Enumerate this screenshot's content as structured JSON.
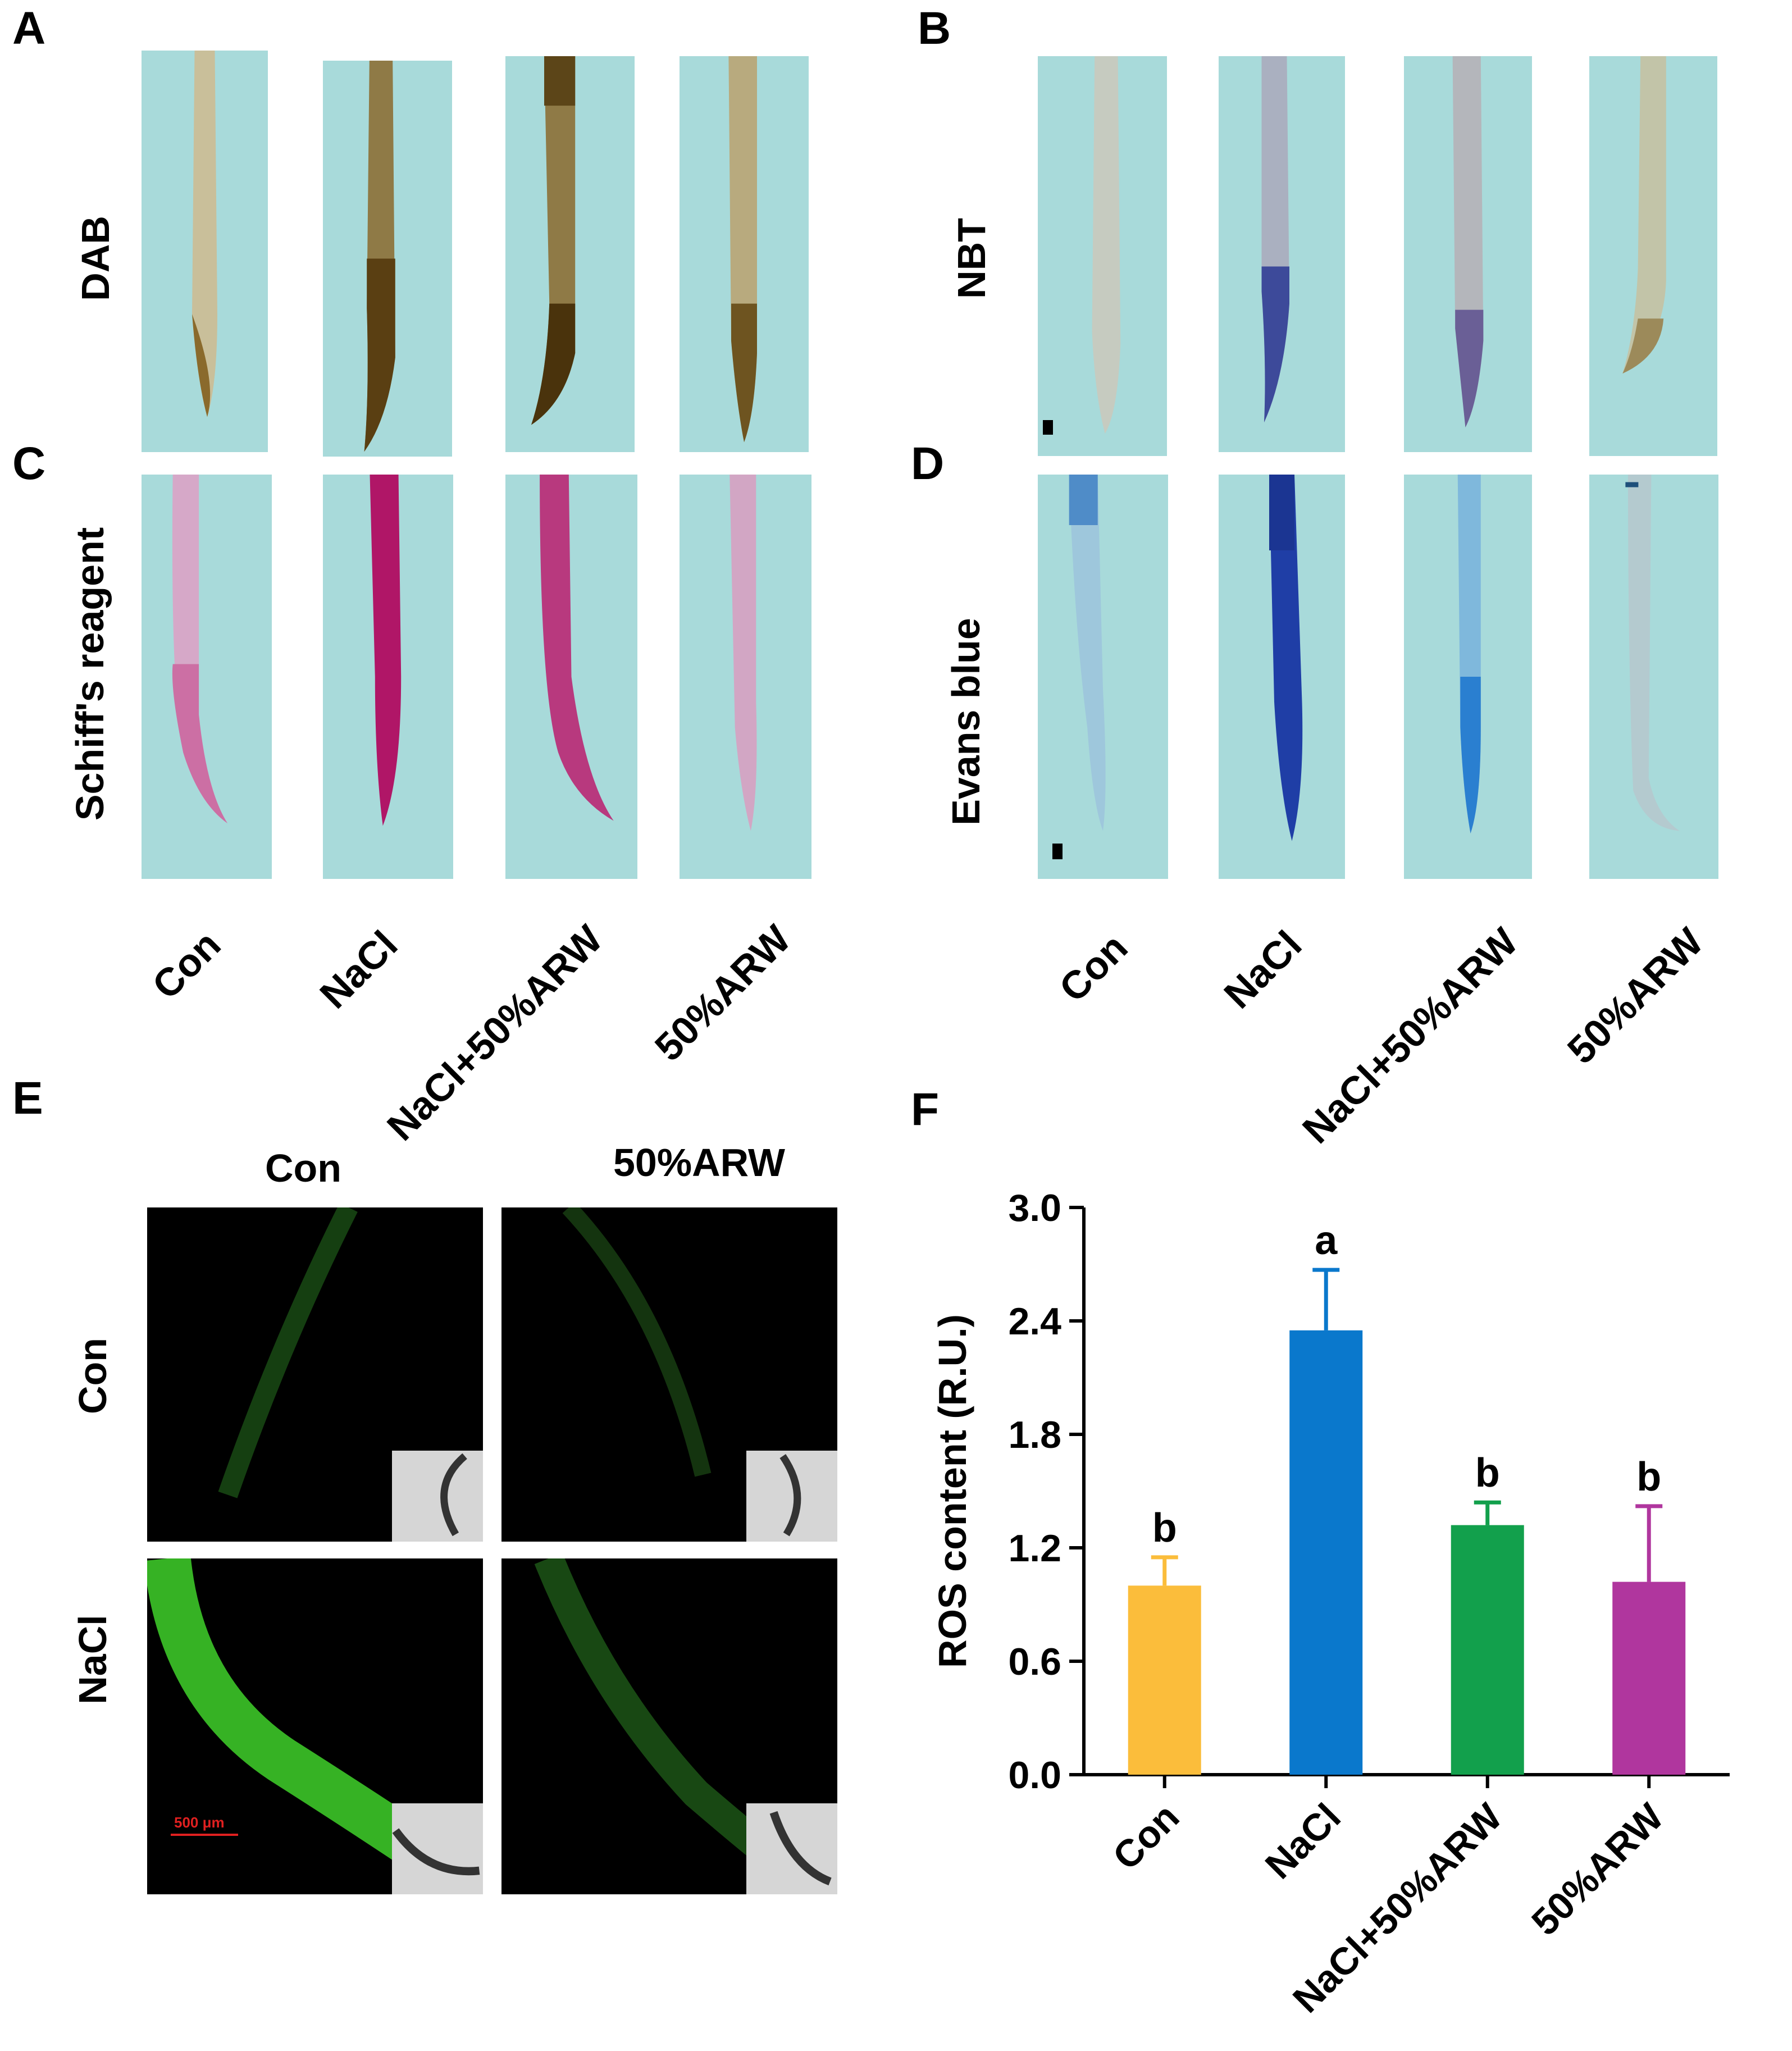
{
  "panels": {
    "A": {
      "letter": "A",
      "stain": "DAB"
    },
    "B": {
      "letter": "B",
      "stain": "NBT"
    },
    "C": {
      "letter": "C",
      "stain": "Schiff's reagent"
    },
    "D": {
      "letter": "D",
      "stain": "Evans blue"
    },
    "E": {
      "letter": "E",
      "col_labels": [
        "Con",
        "50%ARW"
      ],
      "row_labels": [
        "Con",
        "NaCl"
      ],
      "scale_label": "500 μm"
    },
    "F": {
      "letter": "F"
    }
  },
  "treatments": [
    "Con",
    "NaCl",
    "NaCl+50%ARW",
    "50%ARW"
  ],
  "colors": {
    "background_paper": "#a8dada",
    "DAB_stain": "#6b5220",
    "NBT_stain": "#3d4a9a",
    "Schiff_stain": "#b01667",
    "Evans_stain": "#1f3ea6",
    "fluorescence": "#3fd12a",
    "scale_red": "#e02020"
  },
  "chart_data": {
    "type": "bar",
    "categories": [
      "Con",
      "NaCl",
      "NaCl+50%ARW",
      "50%ARW"
    ],
    "values": [
      1.0,
      2.35,
      1.32,
      1.02
    ],
    "errors": [
      0.15,
      0.32,
      0.12,
      0.4
    ],
    "significance": [
      "b",
      "a",
      "b",
      "b"
    ],
    "bar_colors": [
      "#fbbd3b",
      "#0a78cc",
      "#12a04c",
      "#b0369e"
    ],
    "ylabel": "ROS content (R.U.)",
    "xlabel": "",
    "ylim": [
      0,
      3.0
    ],
    "yticks": [
      "0.0",
      "0.6",
      "1.2",
      "1.8",
      "2.4",
      "3.0"
    ]
  }
}
